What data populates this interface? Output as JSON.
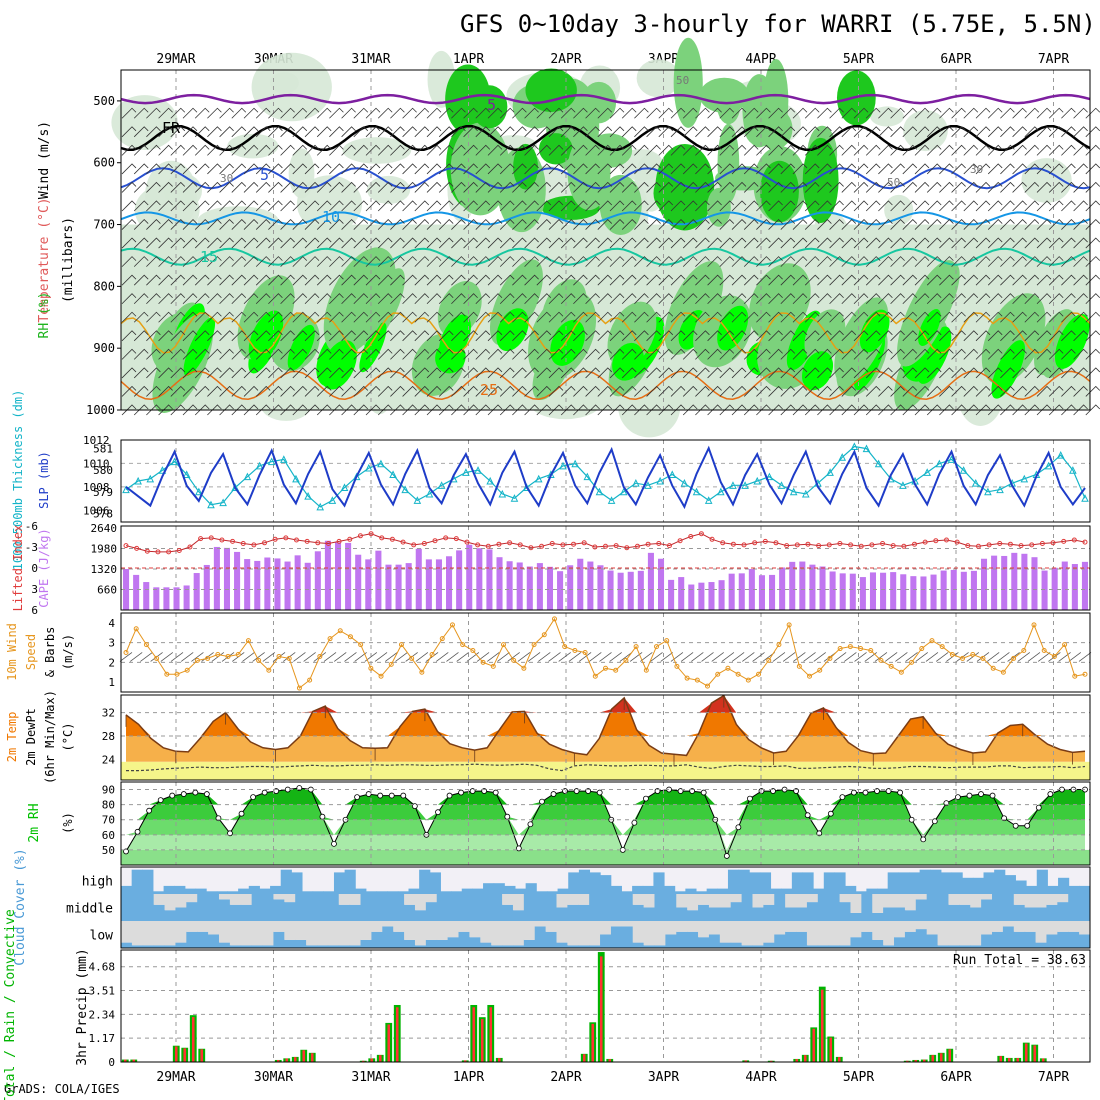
{
  "title": "GFS 0~10day 3-hourly for WARRI (5.75E, 5.5N)",
  "credit": "GrADS: COLA/IGES",
  "run_total": "Run Total = 38.63",
  "dates": [
    "29MAR",
    "30MAR",
    "31MAR",
    "1APR",
    "2APR",
    "3APR",
    "4APR",
    "5APR",
    "6APR",
    "7APR"
  ],
  "colors": {
    "rh_light": "#d6e8d6",
    "rh_mid": "#7cd27c",
    "rh_dark": "#1ec81e",
    "rh_max": "#00ff00",
    "temp_5": "#7d1fa0",
    "temp_fr": "#000000",
    "temp_b": "#2850d0",
    "temp_10": "#1496e6",
    "temp_15": "#16c7a0",
    "temp_20": "#e6a014",
    "temp_25": "#e66e14",
    "slp": "#1e3cc8",
    "thick": "#14b4c8",
    "cape": "#c076f0",
    "li": "#e03c3c",
    "wind10": "#e6961e",
    "temp2m": "#f07800",
    "rh2m": "#00c000",
    "cloud": "#6aaee0",
    "rain": "#00b400",
    "conv": "#ff3232"
  },
  "chart_data": [
    {
      "type": "heatmap",
      "name": "upper-air",
      "ylabels": {
        "rh": "RH (%)",
        "temp": "Temperature (°C)",
        "wind": "Wind (m/s)",
        "unit": "(millibars)"
      },
      "y_ticks": [
        500,
        600,
        700,
        800,
        900,
        1000
      ],
      "ylim": [
        1000,
        450
      ],
      "isotherm_labels": [
        {
          "label": "5",
          "at": "500"
        },
        {
          "label": "FR",
          "at": "560"
        },
        {
          "label": "5",
          "at": "620"
        },
        {
          "label": "10",
          "at": "690"
        },
        {
          "label": "15",
          "at": "750"
        },
        {
          "label": "25",
          "at": "970"
        }
      ],
      "rh_labels": [
        "50",
        "30",
        "50",
        "30"
      ]
    },
    {
      "type": "line",
      "name": "slp-thickness",
      "ylabel_left": "1000-500mb Thickness (dm)",
      "ylabel_right": "SLP (mb)",
      "left_ticks": [
        578,
        579,
        580,
        581
      ],
      "right_ticks": [
        1006,
        1008,
        1010,
        1012
      ],
      "slp": [
        1008.0,
        1007.2,
        1006.4,
        1008.9,
        1011.0,
        1008.1,
        1006.8,
        1009.2,
        1010.8,
        1007.9,
        1006.5,
        1009.0,
        1011.1,
        1008.2,
        1006.6,
        1009.1,
        1011.0,
        1007.8,
        1006.4,
        1008.9,
        1010.9,
        1008.2,
        1006.5,
        1009.1,
        1011.1,
        1007.9,
        1006.6,
        1009.0,
        1010.8,
        1008.3,
        1006.5,
        1009.2,
        1011.0,
        1008.0,
        1006.4,
        1009.0,
        1010.9,
        1008.1,
        1006.6,
        1009.2,
        1011.2,
        1008.0,
        1006.5,
        1008.8,
        1010.7,
        1008.1,
        1006.3,
        1009.1,
        1011.3,
        1008.4,
        1006.5,
        1009.0,
        1010.8,
        1008.2,
        1006.6,
        1009.0,
        1011.0,
        1008.0,
        1006.6,
        1009.1,
        1011.0,
        1007.9,
        1006.4,
        1009.0,
        1010.8,
        1008.2,
        1006.5,
        1009.1,
        1011.0,
        1008.1,
        1006.5,
        1009.0,
        1010.7,
        1008.1,
        1006.4,
        1008.9,
        1010.9,
        1008.0,
        1006.5,
        1007.9
      ],
      "thickness": [
        579.1,
        579.5,
        579.6,
        580.0,
        580.4,
        579.8,
        579.0,
        578.4,
        578.5,
        579.2,
        579.7,
        580.2,
        580.4,
        580.5,
        579.6,
        578.8,
        578.3,
        578.6,
        579.2,
        579.7,
        580.1,
        580.3,
        579.8,
        579.1,
        578.6,
        578.9,
        579.3,
        579.6,
        579.9,
        580.0,
        579.5,
        578.9,
        578.7,
        579.2,
        579.6,
        579.8,
        580.2,
        580.3,
        579.7,
        579.0,
        578.6,
        579.0,
        579.4,
        579.3,
        579.5,
        579.8,
        579.4,
        579.0,
        578.6,
        579.0,
        579.3,
        579.3,
        579.5,
        579.7,
        579.3,
        579.0,
        578.9,
        579.4,
        579.9,
        580.6,
        581.1,
        581.0,
        580.3,
        579.6,
        579.3,
        579.5,
        579.9,
        580.3,
        580.5,
        580.0,
        579.4,
        579.0,
        579.1,
        579.4,
        579.6,
        579.8,
        580.2,
        580.7,
        580.0,
        578.7
      ]
    },
    {
      "type": "bar",
      "name": "cape-li",
      "ylabel_left": "Lifted Index",
      "ylabel_right": "CAPE (J/kg)",
      "left_ticks": [
        -6,
        -3,
        0,
        3,
        6
      ],
      "right_ticks": [
        660,
        1320,
        1980,
        2640
      ],
      "cape": [
        1320,
        1130,
        900,
        730,
        730,
        730,
        790,
        1190,
        1450,
        2030,
        2000,
        1870,
        1640,
        1580,
        1690,
        1660,
        1560,
        1760,
        1520,
        1890,
        2230,
        2180,
        2160,
        1780,
        1630,
        1910,
        1460,
        1460,
        1510,
        1970,
        1630,
        1630,
        1730,
        1920,
        2100,
        1990,
        1950,
        1700,
        1570,
        1530,
        1400,
        1510,
        1390,
        1250,
        1440,
        1650,
        1560,
        1440,
        1270,
        1200,
        1230,
        1260,
        1840,
        1650,
        970,
        1060,
        820,
        880,
        900,
        960,
        1170,
        1180,
        1320,
        1120,
        1130,
        1370,
        1550,
        1560,
        1460,
        1400,
        1240,
        1180,
        1170,
        1060,
        1210,
        1200,
        1220,
        1150,
        1090,
        1080,
        1140,
        1270,
        1290,
        1230,
        1260,
        1650,
        1750,
        1740,
        1840,
        1810,
        1700,
        1270,
        1360,
        1560,
        1480,
        1550
      ],
      "lifted_index": [
        -3.2,
        -2.8,
        -2.4,
        -2.3,
        -2.3,
        -2.5,
        -3.0,
        -4.2,
        -4.3,
        -4.0,
        -3.8,
        -3.5,
        -3.3,
        -3.6,
        -4.1,
        -4.3,
        -4.0,
        -3.8,
        -3.6,
        -3.5,
        -3.8,
        -4.1,
        -4.6,
        -4.9,
        -4.3,
        -4.1,
        -3.7,
        -3.3,
        -3.5,
        -3.9,
        -4.3,
        -4.2,
        -3.7,
        -3.3,
        -3.1,
        -3.4,
        -3.6,
        -3.3,
        -2.9,
        -3.1,
        -3.5,
        -3.3,
        -3.4,
        -3.6,
        -3.0,
        -3.1,
        -3.2,
        -2.9,
        -3.1,
        -3.4,
        -3.5,
        -3.2,
        -3.9,
        -4.5,
        -4.9,
        -4.1,
        -3.6,
        -3.4,
        -3.3,
        -3.6,
        -3.8,
        -3.6,
        -3.2,
        -3.3,
        -3.4,
        -3.2,
        -3.3,
        -3.5,
        -3.3,
        -3.1,
        -3.3,
        -3.5,
        -3.2,
        -3.1,
        -3.4,
        -3.7,
        -3.9,
        -4.0,
        -3.7,
        -3.2,
        -3.1,
        -3.3,
        -3.5,
        -3.4,
        -3.2,
        -3.3,
        -3.5,
        -3.6,
        -3.8,
        -4.0,
        -3.7
      ]
    },
    {
      "type": "line",
      "name": "wind10m",
      "ylabel": "10m Wind Speed & Barbs (m/s)",
      "ylim": [
        0.5,
        4.5
      ],
      "y_ticks": [
        1,
        2,
        3,
        4
      ],
      "values": [
        2.5,
        3.7,
        2.9,
        2.2,
        1.4,
        1.4,
        1.6,
        2.1,
        2.2,
        2.4,
        2.3,
        2.4,
        3.1,
        2.1,
        1.6,
        2.3,
        2.2,
        0.7,
        1.1,
        2.3,
        3.2,
        3.6,
        3.3,
        2.9,
        1.7,
        1.3,
        1.9,
        2.9,
        2.2,
        1.5,
        2.4,
        3.2,
        3.9,
        2.9,
        2.6,
        2.0,
        1.8,
        2.9,
        2.1,
        1.7,
        2.9,
        3.4,
        4.2,
        2.8,
        2.6,
        2.5,
        1.3,
        1.7,
        1.6,
        2.1,
        2.8,
        1.6,
        2.8,
        3.1,
        1.8,
        1.2,
        1.1,
        0.8,
        1.4,
        1.7,
        1.4,
        1.1,
        1.4,
        2.1,
        2.9,
        3.9,
        1.8,
        1.3,
        1.6,
        2.2,
        2.7,
        2.8,
        2.7,
        2.6,
        2.1,
        1.8,
        1.5,
        2.0,
        2.7,
        3.1,
        2.8,
        2.4,
        2.2,
        2.4,
        2.2,
        1.7,
        1.5,
        2.2,
        2.6,
        3.9,
        2.6,
        2.3,
        2.9,
        1.3,
        1.4
      ]
    },
    {
      "type": "area",
      "name": "temp2m",
      "ylabel": "2m Temp 2m DewPt (6hr Min/Max) (°C)",
      "ylim": [
        20.5,
        35
      ],
      "y_ticks": [
        24,
        28,
        32
      ],
      "temp": [
        31.6,
        30.0,
        27.6,
        26.0,
        25.4,
        25.3,
        27.7,
        30.5,
        32.0,
        29.2,
        27.0,
        26.0,
        25.7,
        26.0,
        28.0,
        32.2,
        33.1,
        29.3,
        27.2,
        26.0,
        25.9,
        26.0,
        29.6,
        32.2,
        32.6,
        28.8,
        26.7,
        26.0,
        25.6,
        26.0,
        29.1,
        32.1,
        32.2,
        28.5,
        26.6,
        25.7,
        25.1,
        24.8,
        27.6,
        32.6,
        34.5,
        29.1,
        26.4,
        25.1,
        24.9,
        24.7,
        28.5,
        33.6,
        34.9,
        30.0,
        27.4,
        26.0,
        25.1,
        25.4,
        28.1,
        31.9,
        32.8,
        29.5,
        26.9,
        25.5,
        25.0,
        25.1,
        28.0,
        30.9,
        31.3,
        28.5,
        26.6,
        25.7,
        25.1,
        25.3,
        28.5,
        29.8,
        30.0,
        28.2,
        26.6,
        25.7,
        25.2,
        25.4
      ],
      "dewpt": [
        22.1,
        22.1,
        22.2,
        22.4,
        22.5,
        22.6,
        22.7,
        22.6,
        22.6,
        22.7,
        22.8,
        22.8,
        22.7,
        22.8,
        22.9,
        23.0,
        22.9,
        22.9,
        23.0,
        23.0,
        23.1,
        23.0,
        23.1,
        23.1,
        23.0,
        23.0,
        23.1,
        23.1,
        23.2,
        23.1,
        23.0,
        23.1,
        23.2,
        23.0,
        22.4,
        22.1,
        22.9,
        23.1,
        23.0,
        22.9,
        22.9,
        23.0,
        23.0,
        22.9,
        22.9,
        23.1,
        22.7,
        22.5,
        22.8,
        23.0,
        22.9,
        22.8,
        22.8,
        22.9,
        22.5,
        22.5,
        22.6,
        22.7,
        22.8,
        22.7,
        22.5,
        22.5,
        22.6,
        22.8,
        22.8,
        22.7,
        22.6,
        22.7,
        22.7,
        22.7,
        22.9,
        22.9,
        22.6,
        22.7,
        22.7,
        22.8,
        22.6,
        22.8
      ]
    },
    {
      "type": "area",
      "name": "rh2m",
      "ylabel": "2m RH (%)",
      "ylim": [
        40,
        95
      ],
      "y_ticks": [
        50,
        60,
        70,
        80,
        90
      ],
      "values": [
        49,
        62,
        76,
        83,
        86,
        87,
        88,
        87,
        71,
        61,
        74,
        85,
        88,
        89,
        90,
        91,
        90,
        72,
        54,
        70,
        85,
        87,
        86,
        86,
        86,
        79,
        60,
        75,
        86,
        88,
        89,
        89,
        88,
        72,
        51,
        67,
        82,
        87,
        89,
        89,
        89,
        88,
        70,
        50,
        68,
        84,
        89,
        90,
        89,
        89,
        88,
        70,
        46,
        65,
        84,
        89,
        89,
        90,
        89,
        73,
        61,
        74,
        85,
        88,
        88,
        89,
        89,
        88,
        70,
        57,
        69,
        81,
        85,
        86,
        87,
        86,
        71,
        66,
        66,
        78,
        87,
        90,
        90,
        90
      ],
      "bands": [
        50,
        60,
        70,
        80,
        90
      ]
    },
    {
      "type": "heatmap",
      "name": "cloud-cover",
      "ylabel": "Cloud Cover (%)",
      "levels": [
        "high",
        "middle",
        "low"
      ],
      "high": [
        0.3,
        0.9,
        0.9,
        0.1,
        0.3,
        0.3,
        0.2,
        0.2,
        0.1,
        0.1,
        0.1,
        0.2,
        0.3,
        0.2,
        0.3,
        0.9,
        0.8,
        0.1,
        0.1,
        0.1,
        0.8,
        0.9,
        0.2,
        0.1,
        0.1,
        0.1,
        0.1,
        0.2,
        0.9,
        0.8,
        0.1,
        0.1,
        0.2,
        0.2,
        0.4,
        0.4,
        0.3,
        0.2,
        0.4,
        0.1,
        0.1,
        0.2,
        0.8,
        0.9,
        0.8,
        0.7,
        0.3,
        0.1,
        0.3,
        0.3,
        0.8,
        0.3,
        0.1,
        0.2,
        0.1,
        0.2,
        0.2,
        0.9,
        0.9,
        0.8,
        0.8,
        0.2,
        0.2,
        0.8,
        0.8,
        0.2,
        0.8,
        0.8,
        0.3,
        0.1,
        0.2,
        0.2,
        0.8,
        0.8,
        0.8,
        0.9,
        0.9,
        0.8,
        0.8,
        0.6,
        0.6,
        0.8,
        0.9,
        0.7,
        0.5,
        0.3,
        0.9,
        0.3,
        0.6,
        0.3,
        0.3
      ],
      "middle": [
        1,
        1,
        1,
        0.6,
        0.4,
        0.5,
        0.7,
        1,
        1,
        0.8,
        0.6,
        0.6,
        1,
        1,
        0.8,
        0.7,
        1,
        1,
        1,
        1,
        0.6,
        0.6,
        1,
        1,
        1,
        1,
        0.6,
        0.4,
        0.7,
        1,
        1,
        1,
        1,
        1,
        1,
        0.6,
        0.4,
        1,
        1,
        1,
        0.5,
        0.6,
        0.6,
        1,
        1,
        1,
        1,
        0.6,
        0.5,
        1,
        1,
        0.5,
        0.4,
        0.6,
        0.5,
        0.5,
        0.7,
        1,
        0.5,
        0.6,
        1,
        0.5,
        0.5,
        0.7,
        1,
        1,
        0.7,
        0.3,
        1,
        0.3,
        0.5,
        0.5,
        0.4,
        0.8,
        1,
        1,
        0.6,
        0.6,
        0.5,
        0.8,
        1,
        1,
        0.6,
        0.5,
        0.5,
        0.6,
        0.7,
        1,
        1
      ],
      "low": [
        0.2,
        0.1,
        0.1,
        0.1,
        0.1,
        0.2,
        0.6,
        0.6,
        0.5,
        0.2,
        0.1,
        0.1,
        0.1,
        0.1,
        0.6,
        0.3,
        0.3,
        0.1,
        0.1,
        0.1,
        0.1,
        0.1,
        0.3,
        0.6,
        0.8,
        0.6,
        0.3,
        0.1,
        0.3,
        0.3,
        0.4,
        0.6,
        0.4,
        0.2,
        0.1,
        0.1,
        0.1,
        0.3,
        0.8,
        0.6,
        0.2,
        0.1,
        0.1,
        0.1,
        0.5,
        0.8,
        0.8,
        0.2,
        0.1,
        0.1,
        0.5,
        0.6,
        0.6,
        0.4,
        0.5,
        0.2,
        0.2,
        0.1,
        0.1,
        0.2,
        0.5,
        0.6,
        0.6,
        0.1,
        0.1,
        0.1,
        0.1,
        0.4,
        0.6,
        0.3,
        0.1,
        0.4,
        0.6,
        0.7,
        0.5,
        0.1,
        0.1,
        0.1,
        0.1,
        0.5,
        0.6,
        0.8,
        0.6,
        0.6,
        0.2,
        0.5,
        0.6,
        0.6,
        0.5
      ]
    },
    {
      "type": "bar",
      "name": "precip",
      "ylabel_left": "Total / Rain / Convective",
      "ylabel": "3hr Precip (mm)",
      "ylim": [
        0,
        5.5
      ],
      "y_ticks": [
        0,
        1.17,
        2.34,
        3.51,
        4.68
      ],
      "tick_labels": [
        "0",
        "1.17",
        "2.34",
        "3.51",
        "4.68"
      ],
      "values": [
        0.12,
        0.12,
        0,
        0,
        0,
        0,
        0.8,
        0.7,
        2.3,
        0.65,
        0,
        0,
        0,
        0,
        0,
        0,
        0,
        0,
        0.1,
        0.18,
        0.25,
        0.6,
        0.45,
        0,
        0,
        0,
        0,
        0,
        0.06,
        0.18,
        0.35,
        1.92,
        2.8,
        0,
        0,
        0,
        0,
        0,
        0,
        0,
        0.08,
        2.8,
        2.2,
        2.8,
        0.2,
        0,
        0,
        0,
        0,
        0,
        0,
        0,
        0,
        0,
        0.4,
        1.95,
        5.4,
        0.15,
        0,
        0,
        0,
        0,
        0,
        0,
        0,
        0,
        0,
        0,
        0,
        0,
        0,
        0,
        0,
        0.08,
        0,
        0,
        0.06,
        0,
        0,
        0.15,
        0.35,
        1.7,
        3.7,
        1.25,
        0.25,
        0,
        0,
        0,
        0,
        0,
        0,
        0,
        0.06,
        0.1,
        0.12,
        0.35,
        0.45,
        0.65,
        0,
        0,
        0,
        0,
        0,
        0.3,
        0.2,
        0.2,
        0.95,
        0.85,
        0.18,
        0,
        0,
        0,
        0,
        0
      ]
    }
  ]
}
